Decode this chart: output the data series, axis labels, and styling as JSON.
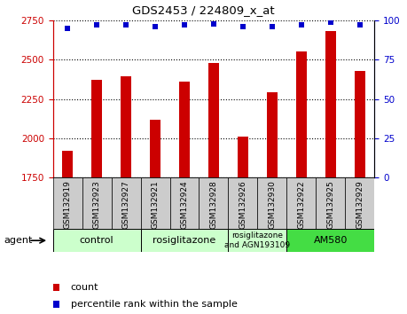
{
  "title": "GDS2453 / 224809_x_at",
  "samples": [
    "GSM132919",
    "GSM132923",
    "GSM132927",
    "GSM132921",
    "GSM132924",
    "GSM132928",
    "GSM132926",
    "GSM132930",
    "GSM132922",
    "GSM132925",
    "GSM132929"
  ],
  "counts": [
    1920,
    2370,
    2395,
    2120,
    2360,
    2480,
    2010,
    2290,
    2555,
    2680,
    2430
  ],
  "percentiles": [
    95,
    97,
    97,
    96,
    97,
    98,
    96,
    96,
    97,
    99,
    97
  ],
  "ylim_left": [
    1750,
    2750
  ],
  "ylim_right": [
    0,
    100
  ],
  "yticks_left": [
    1750,
    2000,
    2250,
    2500,
    2750
  ],
  "yticks_right": [
    0,
    25,
    50,
    75,
    100
  ],
  "bar_color": "#cc0000",
  "dot_color": "#0000cc",
  "groups": [
    {
      "label": "control",
      "indices": [
        0,
        1,
        2
      ],
      "color": "#ccffcc"
    },
    {
      "label": "rosiglitazone",
      "indices": [
        3,
        4,
        5
      ],
      "color": "#ccffcc"
    },
    {
      "label": "rosiglitazone\nand AGN193109",
      "indices": [
        6,
        7
      ],
      "color": "#ccffcc"
    },
    {
      "label": "AM580",
      "indices": [
        8,
        9,
        10
      ],
      "color": "#44dd44"
    }
  ],
  "legend_count_label": "count",
  "legend_pct_label": "percentile rank within the sample",
  "agent_label": "agent",
  "bar_bottom": 1750,
  "bar_width": 0.35,
  "tick_label_box_color": "#cccccc",
  "group_box_border": "#888888"
}
